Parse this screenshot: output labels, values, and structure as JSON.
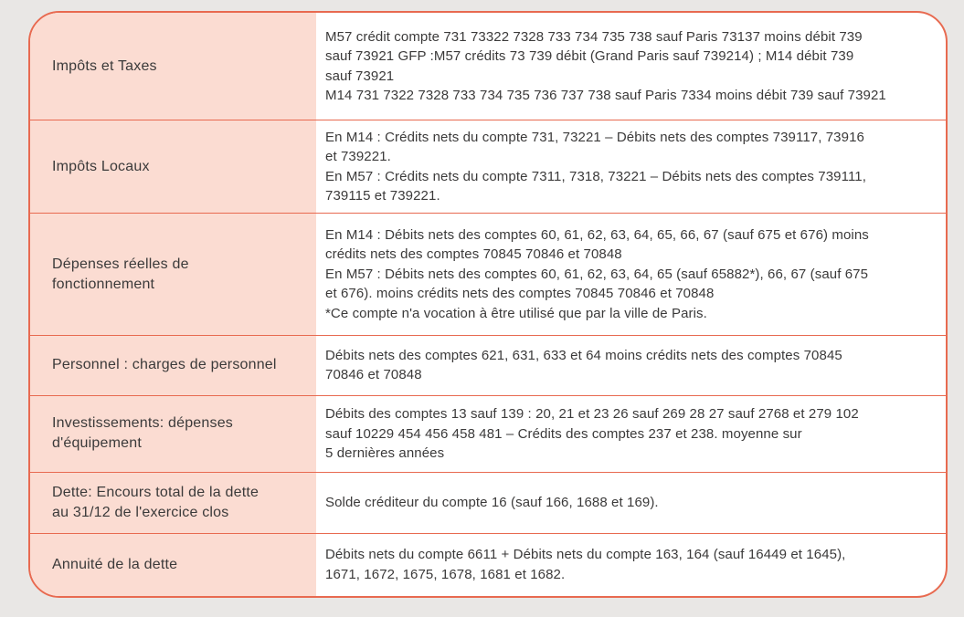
{
  "colors": {
    "page_background": "#e9e7e5",
    "border": "#e86a50",
    "label_background": "#fbdcd2",
    "text": "#3b3a3a",
    "cell_background": "#ffffff"
  },
  "table": {
    "rows": [
      {
        "label": "Impôts et Taxes",
        "description": "M57 crédit compte 731 73322 7328 733 734 735 738 sauf Paris 73137 moins débit 739\nsauf 73921 GFP :M57 crédits 73 739 débit (Grand Paris sauf 739214) ; M14 débit 739\nsauf 73921\nM14 731 7322 7328 733 734 735 736 737 738 sauf Paris 7334 moins débit 739 sauf 73921"
      },
      {
        "label": "Impôts Locaux",
        "description": "En M14 : Crédits nets du compte 731, 73221 – Débits nets des comptes 739117, 73916\net 739221.\nEn M57 : Crédits nets du compte 7311, 7318, 73221 – Débits nets des comptes 739111,\n739115 et 739221."
      },
      {
        "label": "Dépenses réelles de\nfonctionnement",
        "description": "En M14 : Débits nets des comptes 60, 61, 62, 63, 64, 65, 66, 67 (sauf 675 et 676) moins\ncrédits nets des comptes 70845 70846 et 70848\nEn M57 : Débits nets des comptes 60, 61, 62, 63, 64, 65 (sauf 65882*), 66, 67 (sauf 675\net 676). moins crédits nets des comptes 70845 70846 et 70848\n*Ce compte n'a vocation à être utilisé que par la ville de Paris."
      },
      {
        "label": "Personnel : charges de personnel",
        "description": "Débits nets des comptes 621, 631, 633 et 64 moins crédits nets des comptes 70845\n70846 et 70848"
      },
      {
        "label": "Investissements: dépenses\nd'équipement",
        "description": "Débits des comptes 13 sauf 139 : 20, 21 et 23 26 sauf 269 28 27 sauf 2768 et 279 102\nsauf 10229 454 456 458 481 – Crédits des comptes 237 et 238. moyenne sur\n5 dernières années"
      },
      {
        "label": "Dette: Encours total de la dette\nau 31/12 de l'exercice clos",
        "description": "Solde créditeur du compte 16 (sauf 166, 1688 et 169)."
      },
      {
        "label": "Annuité de la dette",
        "description": "Débits nets du compte 6611 + Débits nets du compte 163, 164 (sauf 16449 et 1645),\n1671, 1672, 1675, 1678, 1681 et 1682."
      }
    ]
  }
}
